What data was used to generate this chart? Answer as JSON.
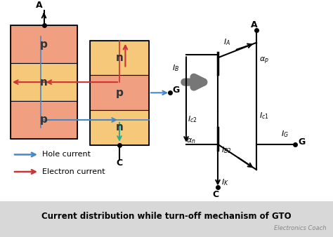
{
  "bg_color": "#ffffff",
  "title_text": "Current distribution while turn-off mechanism of GTO",
  "title_bg": "#d8d8d8",
  "watermark": "Electronics Coach",
  "color_p": "#f0a080",
  "color_n": "#f5c87a",
  "hole_color": "#4488cc",
  "electron_color": "#cc3333",
  "arrow_gray": "#777777",
  "hole_label": "Hole current",
  "electron_label": "Electron current"
}
